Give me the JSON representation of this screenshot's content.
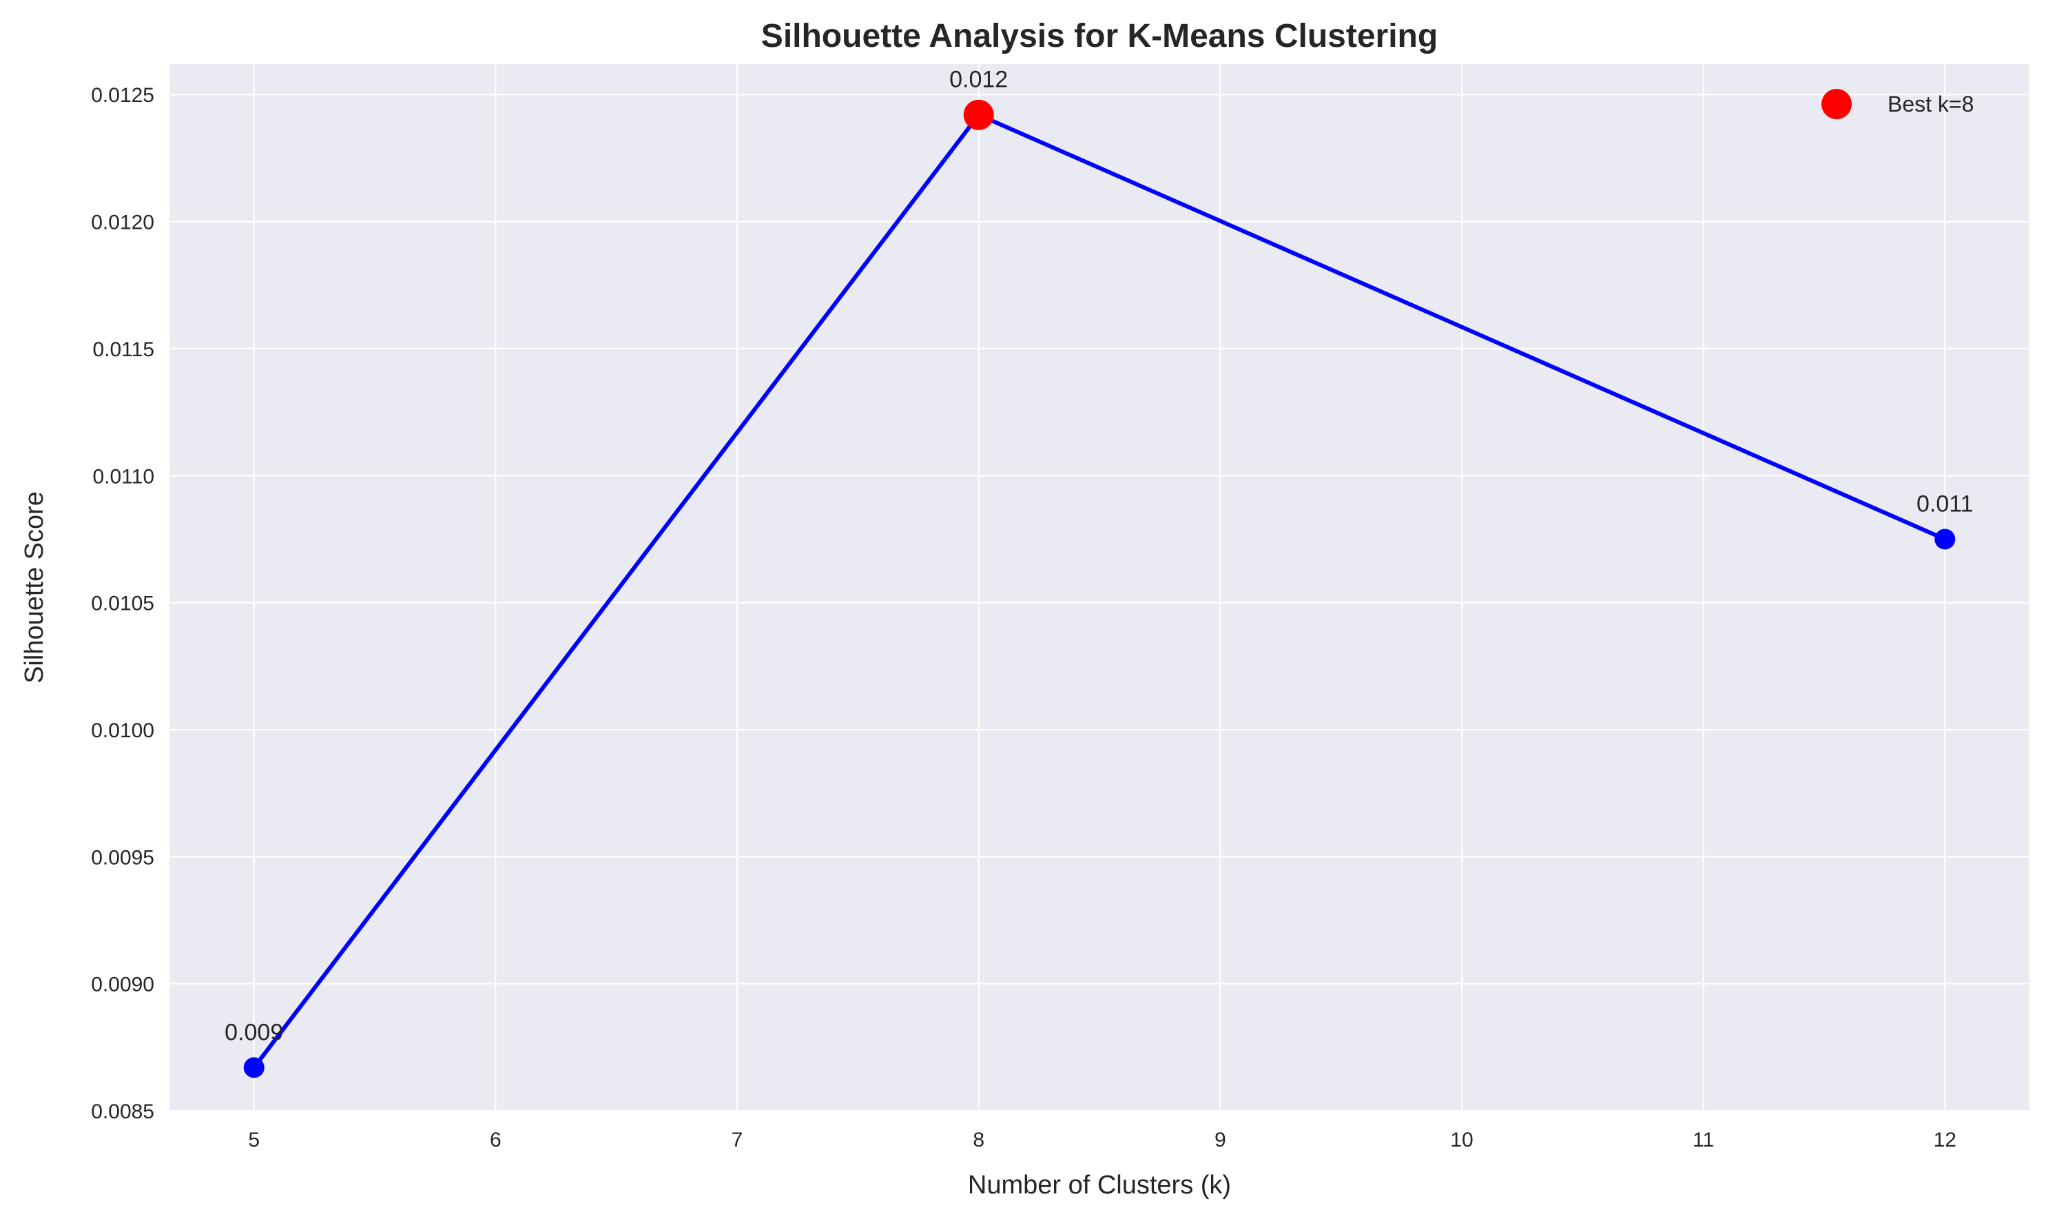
{
  "chart_data": {
    "type": "line",
    "title": "Silhouette Analysis for K-Means Clustering",
    "xlabel": "Number of Clusters (k)",
    "ylabel": "Silhouette Score",
    "xlim": [
      4.65,
      12.35
    ],
    "ylim": [
      0.0085,
      0.01262
    ],
    "x_ticks": [
      5,
      6,
      7,
      8,
      9,
      10,
      11,
      12
    ],
    "y_ticks": [
      0.0085,
      0.009,
      0.0095,
      0.01,
      0.0105,
      0.011,
      0.0115,
      0.012,
      0.0125
    ],
    "y_tick_labels": [
      "0.0085",
      "0.0090",
      "0.0095",
      "0.0100",
      "0.0105",
      "0.0110",
      "0.0115",
      "0.0120",
      "0.0125"
    ],
    "grid": true,
    "series": [
      {
        "x": [
          5,
          8,
          12
        ],
        "y": [
          0.00867,
          0.01242,
          0.01075
        ],
        "labels": [
          "0.009",
          "0.012",
          "0.011"
        ],
        "color": "#0000ff"
      }
    ],
    "highlight": {
      "x": 8,
      "y": 0.01242,
      "label": "Best k=8",
      "color": "#ff0000"
    },
    "legend": {
      "position": "top-right",
      "entries": [
        "Best k=8"
      ]
    },
    "colors": {
      "background": "#eaeaf2",
      "grid": "#ffffff",
      "line": "#0000ff",
      "best": "#ff0000"
    }
  }
}
